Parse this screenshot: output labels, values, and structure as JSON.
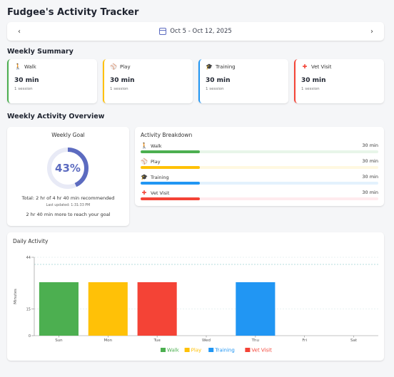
{
  "app": {
    "title": "Fudgee's Activity Tracker"
  },
  "date_nav": {
    "prev_icon": "‹",
    "next_icon": "›",
    "range": "Oct 5 - Oct 12, 2025"
  },
  "weekly_summary": {
    "title": "Weekly Summary",
    "cards": [
      {
        "name": "Walk",
        "icon": "walk-icon",
        "glyph": "🚶",
        "value": "30 min",
        "sub": "1 session",
        "color": "#4caf50"
      },
      {
        "name": "Play",
        "icon": "ball-icon",
        "glyph": "⚾",
        "value": "30 min",
        "sub": "1 session",
        "color": "#ffc107"
      },
      {
        "name": "Training",
        "icon": "graduation-cap-icon",
        "glyph": "🎓",
        "value": "30 min",
        "sub": "1 session",
        "color": "#2196f3"
      },
      {
        "name": "Vet Visit",
        "icon": "medical-cross-icon",
        "glyph": "✚",
        "value": "30 min",
        "sub": "1 session",
        "color": "#f44336"
      }
    ]
  },
  "overview": {
    "title": "Weekly Activity Overview"
  },
  "weekly_goal": {
    "title": "Weekly Goal",
    "percent_text": "43%",
    "percent": 43,
    "total_text": "Total: 2 hr of 4 hr 40 min recommended",
    "last_updated": "Last updated: 1:31:33 PM",
    "remaining_text": "2 hr 40 min more to reach your goal",
    "ring_color": "#5c6bc0",
    "ring_track_color": "#e8eaf6"
  },
  "breakdown": {
    "title": "Activity Breakdown",
    "rows": [
      {
        "name": "Walk",
        "icon": "walk-icon",
        "glyph": "🚶",
        "value": "30 min",
        "fraction": 0.25,
        "color": "#4caf50",
        "track": "#e8f5e9"
      },
      {
        "name": "Play",
        "icon": "ball-icon",
        "glyph": "⚾",
        "value": "30 min",
        "fraction": 0.25,
        "color": "#ffc107",
        "track": "#fff8e1"
      },
      {
        "name": "Training",
        "icon": "graduation-cap-icon",
        "glyph": "🎓",
        "value": "30 min",
        "fraction": 0.25,
        "color": "#2196f3",
        "track": "#e3f2fd"
      },
      {
        "name": "Vet Visit",
        "icon": "medical-cross-icon",
        "glyph": "✚",
        "value": "30 min",
        "fraction": 0.25,
        "color": "#f44336",
        "track": "#ffebee"
      }
    ]
  },
  "chart_data": {
    "type": "bar",
    "title": "Daily Activity",
    "ylabel": "Minutes",
    "xlabel": "",
    "categories": [
      "Sun",
      "Mon",
      "Tue",
      "Wed",
      "Thu",
      "Fri",
      "Sat"
    ],
    "ylim": [
      0,
      44
    ],
    "yticks": [
      0,
      15,
      44
    ],
    "goal_line": 40,
    "bars": [
      {
        "category": "Sun",
        "value": 30,
        "series": "Walk",
        "color": "#4caf50"
      },
      {
        "category": "Mon",
        "value": 30,
        "series": "Play",
        "color": "#ffc107"
      },
      {
        "category": "Tue",
        "value": 30,
        "series": "Vet Visit",
        "color": "#f44336"
      },
      {
        "category": "Wed",
        "value": 0,
        "series": "",
        "color": ""
      },
      {
        "category": "Thu",
        "value": 30,
        "series": "Training",
        "color": "#2196f3"
      },
      {
        "category": "Fri",
        "value": 0,
        "series": "",
        "color": ""
      },
      {
        "category": "Sat",
        "value": 0,
        "series": "",
        "color": ""
      }
    ],
    "legend": [
      {
        "name": "Walk",
        "color": "#4caf50"
      },
      {
        "name": "Play",
        "color": "#ffc107"
      },
      {
        "name": "Training",
        "color": "#2196f3"
      },
      {
        "name": "Vet Visit",
        "color": "#f44336"
      }
    ],
    "legend_position": "bottom",
    "grid": true
  }
}
